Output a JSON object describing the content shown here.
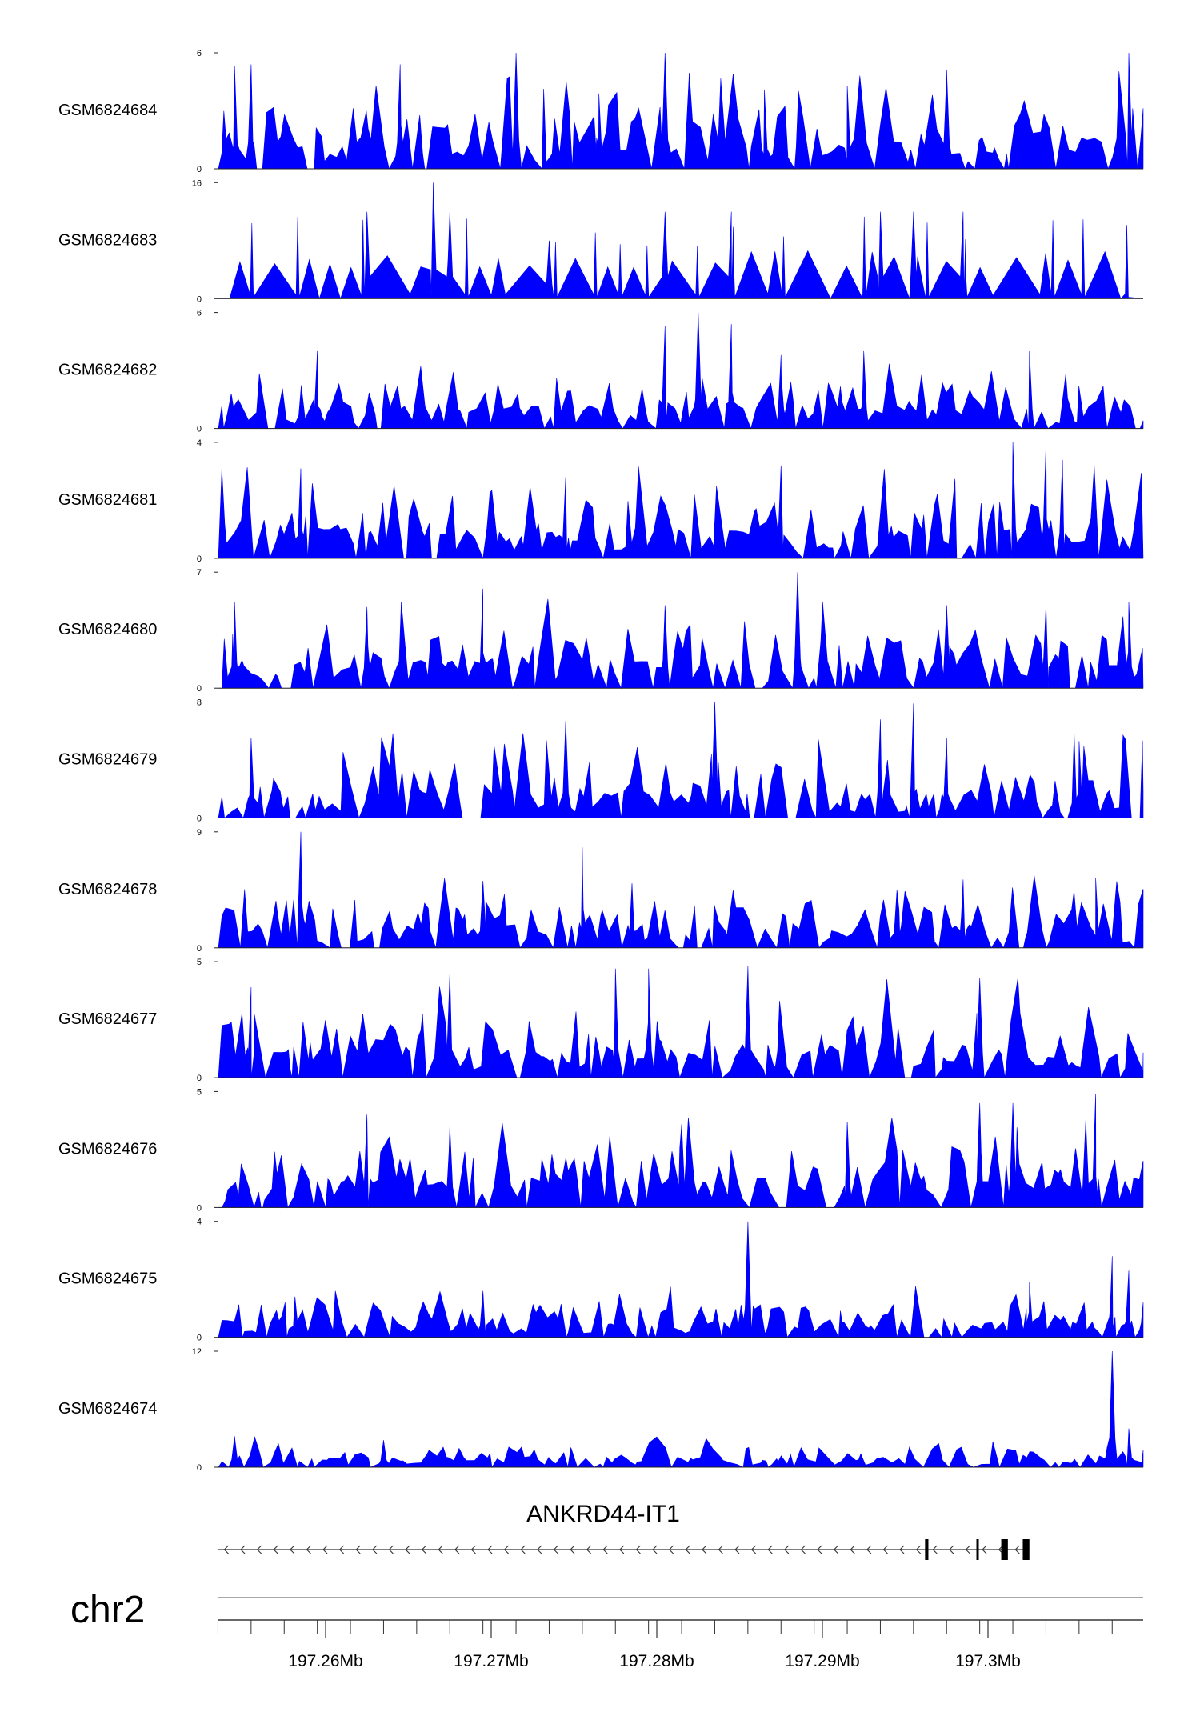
{
  "chart_data": {
    "type": "area",
    "signal_color": "#0000ff",
    "x_axis": {
      "unit": "Mb",
      "ticks": [
        {
          "value": 197.26,
          "label": "197.26Mb"
        },
        {
          "value": 197.27,
          "label": "197.27Mb"
        },
        {
          "value": 197.28,
          "label": "197.28Mb"
        },
        {
          "value": 197.29,
          "label": "197.29Mb"
        },
        {
          "value": 197.3,
          "label": "197.3Mb"
        }
      ]
    },
    "tracks": [
      {
        "name": "GSM6824684",
        "ymin": 0,
        "ymax": 6,
        "ymin_label": "0",
        "ymax_label": "6",
        "typical": 2.2,
        "peaks": [
          [
            197.2545,
            5.3
          ],
          [
            197.2555,
            5.4
          ],
          [
            197.2645,
            5.4
          ],
          [
            197.2715,
            6.0
          ],
          [
            197.2765,
            3.9
          ],
          [
            197.2805,
            6.0
          ],
          [
            197.2865,
            4.1
          ],
          [
            197.2915,
            4.3
          ],
          [
            197.2975,
            5.1
          ],
          [
            197.3085,
            6.0
          ]
        ],
        "seed": 11
      },
      {
        "name": "GSM6824683",
        "ymin": 0,
        "ymax": 16,
        "ymin_label": "0",
        "ymax_label": "16",
        "typical": 6,
        "peaks": [
          [
            197.2625,
            12.0
          ],
          [
            197.2665,
            16.0
          ],
          [
            197.2675,
            12.0
          ],
          [
            197.2735,
            8.0
          ],
          [
            197.2805,
            12.0
          ],
          [
            197.2845,
            12.0
          ],
          [
            197.2935,
            12.0
          ],
          [
            197.2955,
            12.0
          ],
          [
            197.2985,
            12.0
          ]
        ],
        "seed": 23,
        "mode": "sparse"
      },
      {
        "name": "GSM6824682",
        "ymin": 0,
        "ymax": 6,
        "ymin_label": "0",
        "ymax_label": "6",
        "typical": 1.6,
        "peaks": [
          [
            197.2595,
            4.0
          ],
          [
            197.2805,
            5.3
          ],
          [
            197.2825,
            6.0
          ],
          [
            197.2845,
            5.4
          ],
          [
            197.2875,
            3.8
          ],
          [
            197.2925,
            4.0
          ],
          [
            197.3025,
            4.0
          ]
        ],
        "seed": 37
      },
      {
        "name": "GSM6824681",
        "ymin": 0,
        "ymax": 4,
        "ymin_label": "0",
        "ymax_label": "4",
        "typical": 1.4,
        "peaks": [
          [
            197.2585,
            3.1
          ],
          [
            197.2745,
            2.8
          ],
          [
            197.2875,
            3.2
          ],
          [
            197.3015,
            4.0
          ],
          [
            197.3035,
            3.9
          ],
          [
            197.3045,
            3.4
          ]
        ],
        "seed": 41
      },
      {
        "name": "GSM6824680",
        "ymin": 0,
        "ymax": 7,
        "ymin_label": "0",
        "ymax_label": "7",
        "typical": 2.4,
        "peaks": [
          [
            197.2545,
            5.2
          ],
          [
            197.2625,
            4.9
          ],
          [
            197.2695,
            6.0
          ],
          [
            197.2805,
            5.0
          ],
          [
            197.2885,
            7.0
          ],
          [
            197.2975,
            5.0
          ],
          [
            197.3035,
            5.0
          ],
          [
            197.3085,
            5.2
          ]
        ],
        "seed": 53
      },
      {
        "name": "GSM6824679",
        "ymin": 0,
        "ymax": 8,
        "ymin_label": "0",
        "ymax_label": "8",
        "typical": 2.6,
        "peaks": [
          [
            197.2555,
            5.5
          ],
          [
            197.2745,
            6.7
          ],
          [
            197.2835,
            8.0
          ],
          [
            197.2935,
            6.8
          ],
          [
            197.2955,
            7.9
          ],
          [
            197.2975,
            5.5
          ],
          [
            197.3055,
            5.3
          ]
        ],
        "seed": 67
      },
      {
        "name": "GSM6824678",
        "ymin": 0,
        "ymax": 9,
        "ymin_label": "0",
        "ymax_label": "9",
        "typical": 2.5,
        "peaks": [
          [
            197.2585,
            9.0
          ],
          [
            197.2695,
            5.2
          ],
          [
            197.2755,
            7.8
          ],
          [
            197.2785,
            5.0
          ],
          [
            197.2945,
            4.5
          ],
          [
            197.2985,
            5.3
          ],
          [
            197.3065,
            5.4
          ]
        ],
        "seed": 71
      },
      {
        "name": "GSM6824677",
        "ymin": 0,
        "ymax": 5,
        "ymin_label": "0",
        "ymax_label": "5",
        "typical": 1.9,
        "peaks": [
          [
            197.2555,
            3.9
          ],
          [
            197.2675,
            4.5
          ],
          [
            197.2775,
            4.7
          ],
          [
            197.2795,
            4.7
          ],
          [
            197.2855,
            4.8
          ],
          [
            197.2995,
            4.3
          ]
        ],
        "seed": 83
      },
      {
        "name": "GSM6824676",
        "ymin": 0,
        "ymax": 5,
        "ymin_label": "0",
        "ymax_label": "5",
        "typical": 1.7,
        "peaks": [
          [
            197.2625,
            4.0
          ],
          [
            197.2675,
            3.5
          ],
          [
            197.2815,
            3.6
          ],
          [
            197.2915,
            3.7
          ],
          [
            197.2995,
            4.5
          ],
          [
            197.3015,
            4.5
          ],
          [
            197.3065,
            4.9
          ]
        ],
        "seed": 97
      },
      {
        "name": "GSM6824675",
        "ymin": 0,
        "ymax": 4,
        "ymin_label": "0",
        "ymax_label": "4",
        "typical": 0.8,
        "peaks": [
          [
            197.2695,
            1.6
          ],
          [
            197.2855,
            4.0
          ],
          [
            197.3025,
            1.9
          ],
          [
            197.3075,
            2.8
          ],
          [
            197.3085,
            2.3
          ]
        ],
        "seed": 101
      },
      {
        "name": "GSM6824674",
        "ymin": 0,
        "ymax": 12,
        "ymin_label": "0",
        "ymax_label": "12",
        "typical": 1.4,
        "peaks": [
          [
            197.2545,
            3.2
          ],
          [
            197.2635,
            2.8
          ],
          [
            197.3075,
            12.0
          ],
          [
            197.3085,
            4.0
          ]
        ],
        "seed": 109
      }
    ],
    "gene": {
      "name": "ANKRD44-IT1",
      "strand": "-",
      "start": 197.2535,
      "end": 197.3025,
      "exons": [
        [
          197.2962,
          197.2964
        ],
        [
          197.2993,
          197.2994
        ],
        [
          197.3008,
          197.3012
        ],
        [
          197.3021,
          197.3025
        ]
      ]
    },
    "chromosome": "chr2"
  }
}
